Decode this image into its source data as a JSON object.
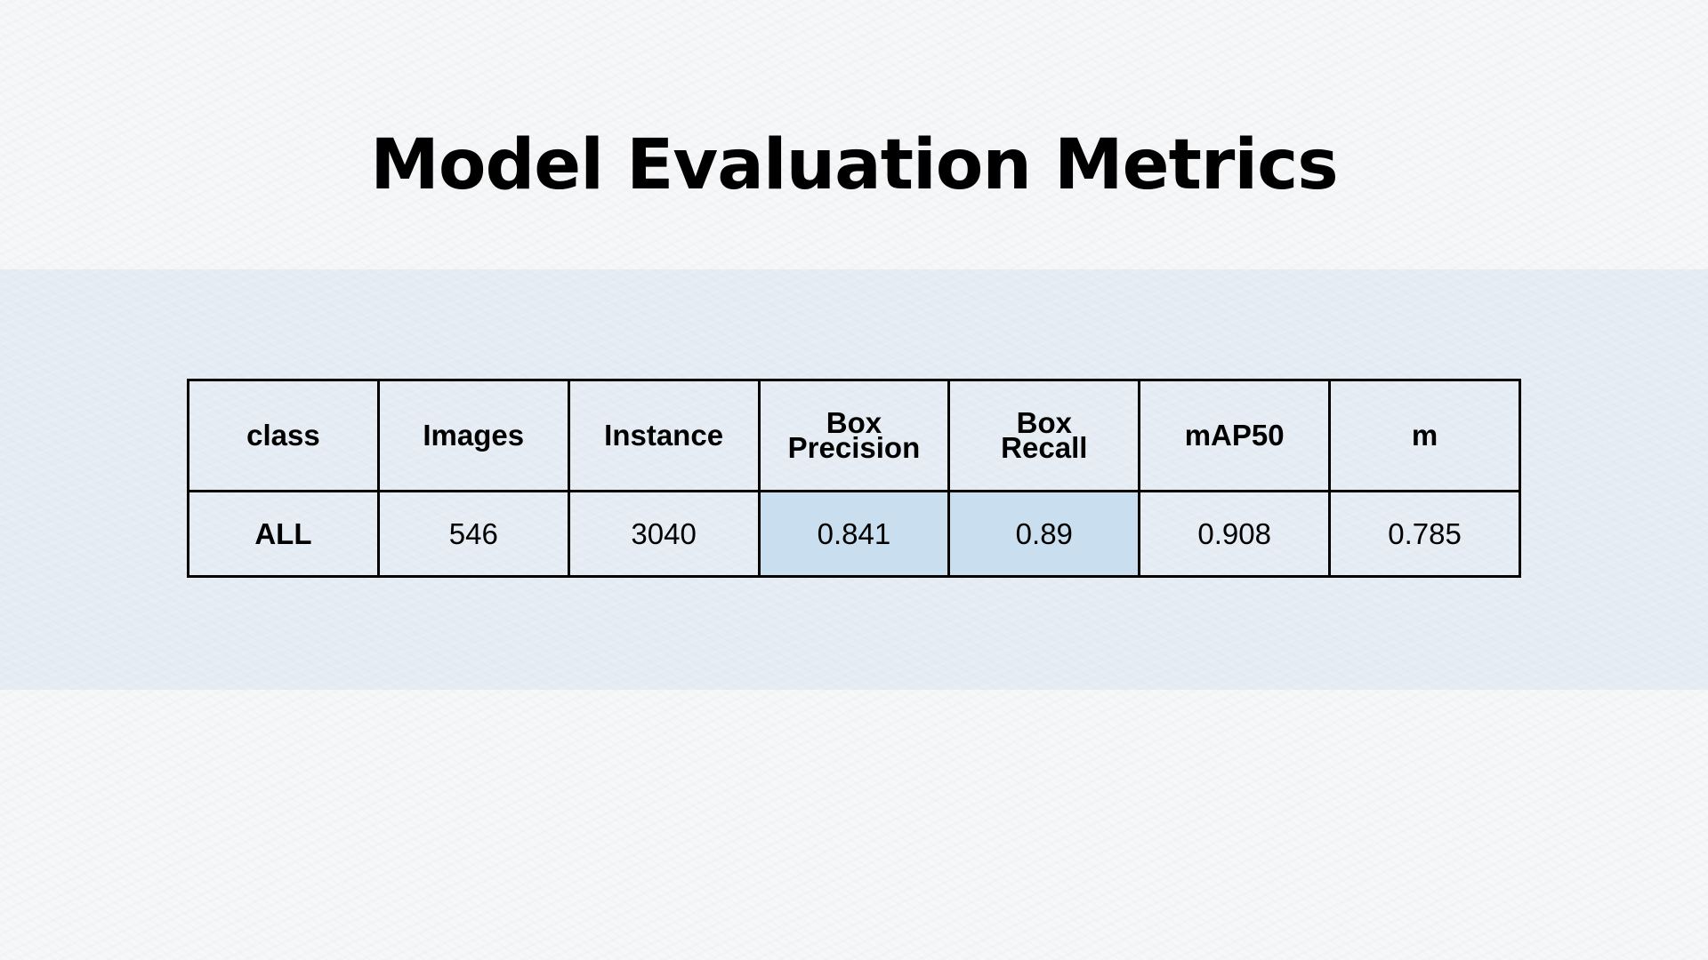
{
  "title": "Model Evaluation Metrics",
  "table": {
    "headers": [
      {
        "lines": [
          "class"
        ]
      },
      {
        "lines": [
          "Images"
        ]
      },
      {
        "lines": [
          "Instance"
        ]
      },
      {
        "lines": [
          "Box",
          "Precision"
        ]
      },
      {
        "lines": [
          "Box",
          "Recall"
        ]
      },
      {
        "lines": [
          "mAP50"
        ]
      },
      {
        "lines": [
          "m"
        ]
      }
    ],
    "rows": [
      [
        "ALL",
        "546",
        "3040",
        "0.841",
        "0.89",
        "0.908",
        "0.785"
      ]
    ],
    "highlight_color": "#c9dff0"
  },
  "colors": {
    "background": "#f6f7f8",
    "band": "#e5ecf4",
    "border": "#000000"
  }
}
